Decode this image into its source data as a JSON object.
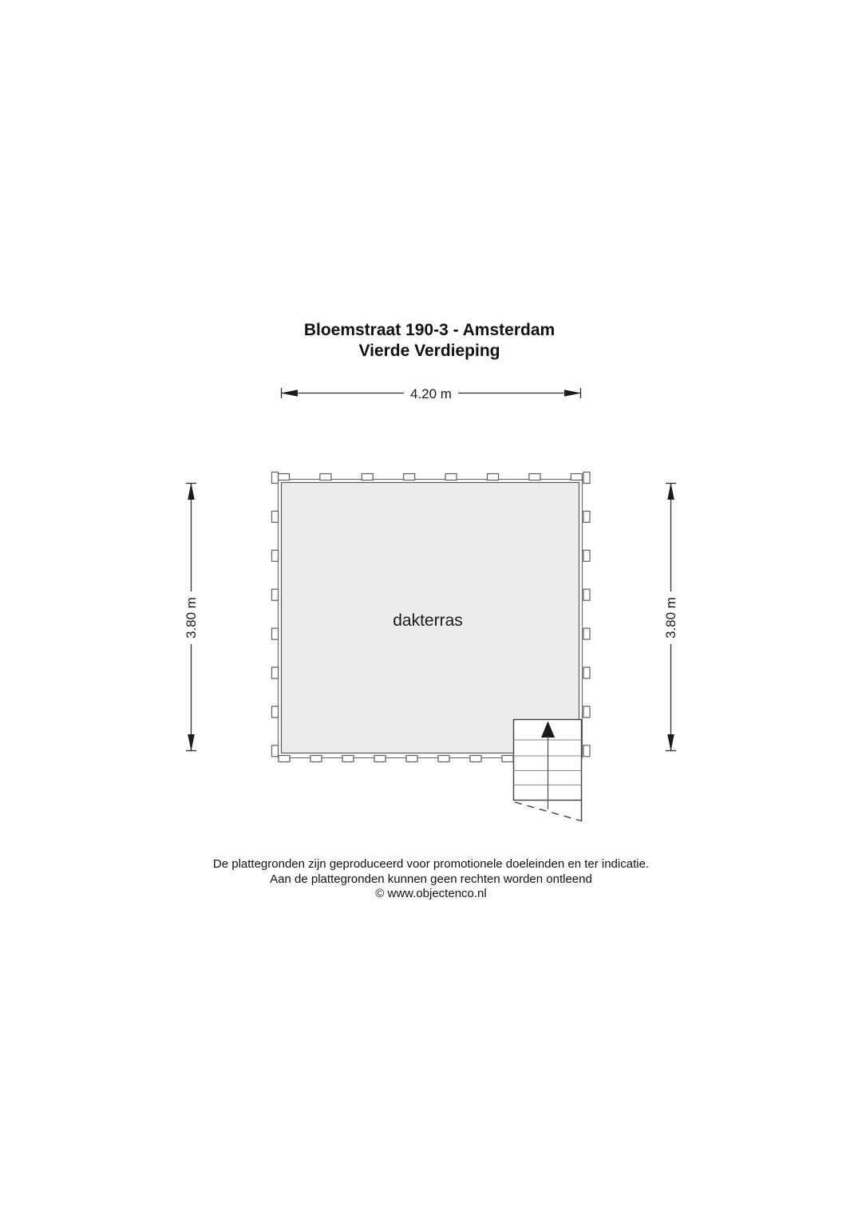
{
  "title": {
    "line1": "Bloemstraat 190-3 - Amsterdam",
    "line2": "Vierde Verdieping"
  },
  "dimensions": {
    "width_label": "4.20 m",
    "height_label_left": "3.80 m",
    "height_label_right": "3.80 m"
  },
  "rooms": [
    {
      "name": "dakterras"
    }
  ],
  "footer": {
    "line1": "De plattegronden zijn geproduceerd voor promotionele doeleinden en ter indicatie.",
    "line2": "Aan de plattegronden kunnen geen rechten worden ontleend",
    "line3": "© www.objectenco.nl"
  },
  "colors": {
    "floor_fill": "#ececec",
    "line_dark": "#2f2f2f",
    "background": "#ffffff"
  }
}
